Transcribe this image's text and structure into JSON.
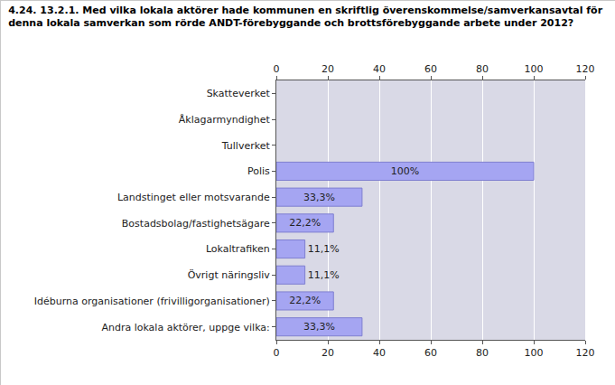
{
  "chart_data": {
    "type": "bar",
    "title": "4.24. 13.2.1. Med vilka lokala aktörer hade kommunen en skriftlig överenskommelse/samverkansavtal för\ndenna lokala samverkan som rörde ANDT-förebyggande och brottsförebyggande arbete under 2012?",
    "orientation": "horizontal",
    "categories": [
      "Skatteverket",
      "Åklagarmyndighet",
      "Tullverket",
      "Polis",
      "Landstinget eller motsvarande",
      "Bostadsbolag/fastighetsägare",
      "Lokaltrafiken",
      "Övrigt näringsliv",
      "Idéburna organisationer (frivilligorganisationer)",
      "Andra lokala aktörer, uppge vilka:"
    ],
    "values": [
      null,
      null,
      null,
      100,
      33.3,
      22.2,
      11.1,
      11.1,
      22.2,
      33.3
    ],
    "value_labels": [
      null,
      null,
      null,
      "100%",
      "33,3%",
      "22,2%",
      "11,1%",
      "11,1%",
      "22,2%",
      "33,3%"
    ],
    "data_labels": true,
    "color": "#a5a5f2",
    "xlim": [
      0,
      120
    ],
    "xticks": [
      0,
      20,
      40,
      60,
      80,
      100,
      120
    ],
    "grid": true
  }
}
